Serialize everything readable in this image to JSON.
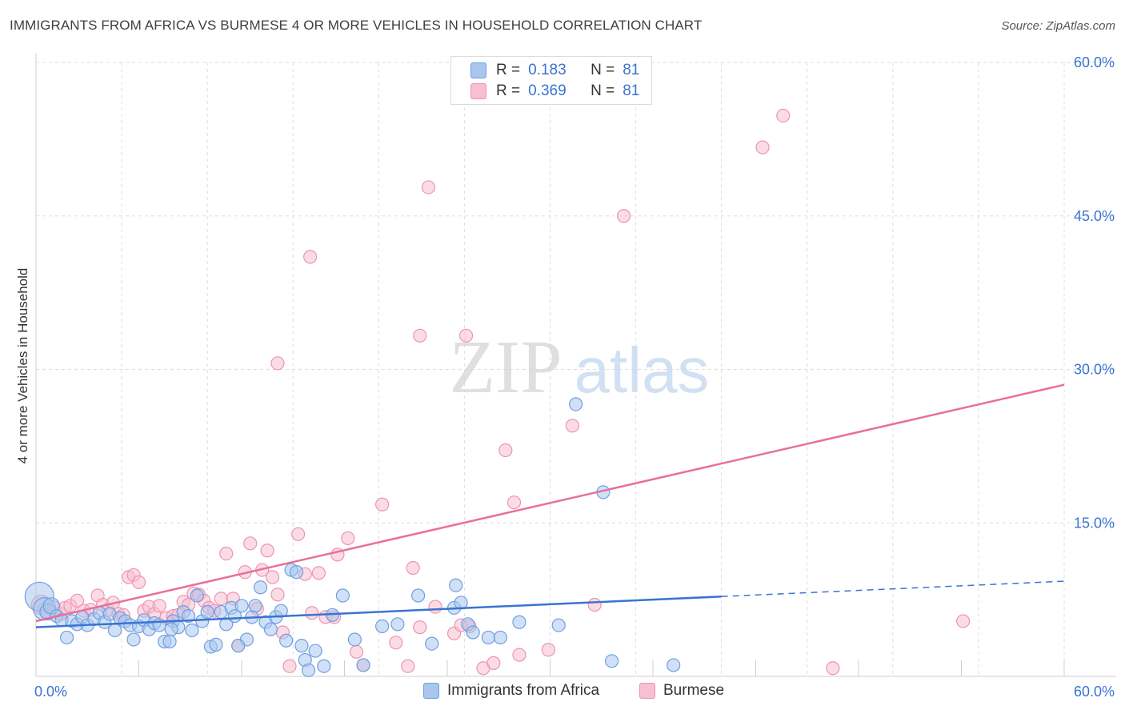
{
  "title": "IMMIGRANTS FROM AFRICA VS BURMESE 4 OR MORE VEHICLES IN HOUSEHOLD CORRELATION CHART",
  "source": "Source: ZipAtlas.com",
  "watermark": {
    "zip": "ZIP",
    "atlas": "atlas"
  },
  "colors": {
    "africa_fill": "#a9c6ee",
    "africa_stroke": "#6f9fe0",
    "africa_line": "#3a74d1",
    "burmese_fill": "#f7bfd0",
    "burmese_stroke": "#ee93b1",
    "burmese_line": "#e8709a",
    "axis_text": "#3a74d1",
    "grid": "#dddddd"
  },
  "legend_top": {
    "rows": [
      {
        "series": "africa",
        "r_label": "R =",
        "r_value": "0.183",
        "n_label": "N =",
        "n_value": "81"
      },
      {
        "series": "burmese",
        "r_label": "R =",
        "r_value": "0.369",
        "n_label": "N =",
        "n_value": "81"
      }
    ]
  },
  "legend_bottom": [
    {
      "series": "africa",
      "label": "Immigrants from Africa"
    },
    {
      "series": "burmese",
      "label": "Burmese"
    }
  ],
  "chart_data": {
    "type": "scatter",
    "title": "IMMIGRANTS FROM AFRICA VS BURMESE 4 OR MORE VEHICLES IN HOUSEHOLD CORRELATION CHART",
    "xlabel": "",
    "ylabel": "4 or more Vehicles in Household",
    "xlim": [
      0,
      60
    ],
    "ylim": [
      0,
      60
    ],
    "x_tick_labels": [
      {
        "value": 0,
        "label": "0.0%"
      },
      {
        "value": 60,
        "label": "60.0%"
      }
    ],
    "y_tick_labels": [
      {
        "value": 15,
        "label": "15.0%"
      },
      {
        "value": 30,
        "label": "30.0%"
      },
      {
        "value": 45,
        "label": "45.0%"
      },
      {
        "value": 60,
        "label": "60.0%"
      }
    ],
    "grid": true,
    "legend_position": "top-center",
    "series": [
      {
        "name": "Immigrants from Africa",
        "key": "africa",
        "trend": {
          "x0": 0,
          "y0": 4.8,
          "x1": 40,
          "y1": 7.8,
          "dashed_to_x": 60,
          "dashed_to_y": 9.3
        },
        "points": [
          [
            0.2,
            7.8,
            18
          ],
          [
            0.5,
            6.6,
            14
          ],
          [
            0.7,
            6.3,
            10
          ],
          [
            0.9,
            6.9,
            10
          ],
          [
            1.2,
            5.9,
            8
          ],
          [
            1.5,
            5.5,
            8
          ],
          [
            1.8,
            3.8,
            8
          ],
          [
            2.1,
            5.4,
            8
          ],
          [
            2.4,
            5.1,
            8
          ],
          [
            2.7,
            5.8,
            8
          ],
          [
            3.0,
            5.0,
            8
          ],
          [
            3.4,
            5.6,
            8
          ],
          [
            3.7,
            6.2,
            8
          ],
          [
            4.0,
            5.3,
            8
          ],
          [
            4.3,
            6.1,
            8
          ],
          [
            4.6,
            4.5,
            8
          ],
          [
            4.9,
            5.7,
            8
          ],
          [
            5.2,
            5.4,
            8
          ],
          [
            5.5,
            5.0,
            8
          ],
          [
            5.7,
            3.6,
            8
          ],
          [
            6.0,
            4.9,
            8
          ],
          [
            6.3,
            5.5,
            8
          ],
          [
            6.6,
            4.6,
            8
          ],
          [
            6.9,
            5.2,
            8
          ],
          [
            7.2,
            5.0,
            8
          ],
          [
            7.5,
            3.4,
            8
          ],
          [
            7.8,
            3.4,
            8
          ],
          [
            8.0,
            5.4,
            8
          ],
          [
            8.3,
            4.8,
            8
          ],
          [
            8.6,
            6.3,
            8
          ],
          [
            8.9,
            5.9,
            8
          ],
          [
            9.1,
            4.5,
            8
          ],
          [
            9.4,
            7.9,
            8
          ],
          [
            9.7,
            5.4,
            8
          ],
          [
            10.0,
            6.3,
            8
          ],
          [
            10.2,
            2.9,
            8
          ],
          [
            10.5,
            3.1,
            8
          ],
          [
            10.8,
            6.3,
            8
          ],
          [
            11.1,
            5.1,
            8
          ],
          [
            11.4,
            6.7,
            8
          ],
          [
            11.6,
            5.9,
            8
          ],
          [
            12.0,
            6.9,
            8
          ],
          [
            12.3,
            3.6,
            8
          ],
          [
            12.6,
            5.8,
            8
          ],
          [
            12.8,
            6.9,
            8
          ],
          [
            13.1,
            8.7,
            8
          ],
          [
            13.4,
            5.3,
            8
          ],
          [
            13.7,
            4.6,
            8
          ],
          [
            14.0,
            5.8,
            8
          ],
          [
            14.3,
            6.4,
            8
          ],
          [
            14.6,
            3.5,
            8
          ],
          [
            14.9,
            10.4,
            8
          ],
          [
            15.2,
            10.2,
            8
          ],
          [
            15.5,
            3.0,
            8
          ],
          [
            15.7,
            1.6,
            8
          ],
          [
            15.9,
            0.6,
            8
          ],
          [
            16.3,
            2.5,
            8
          ],
          [
            16.8,
            1.0,
            8
          ],
          [
            17.3,
            6.0,
            8
          ],
          [
            17.9,
            7.9,
            8
          ],
          [
            18.6,
            3.6,
            8
          ],
          [
            19.1,
            1.1,
            8
          ],
          [
            20.2,
            4.9,
            8
          ],
          [
            21.1,
            5.1,
            8
          ],
          [
            22.3,
            7.9,
            8
          ],
          [
            23.1,
            3.2,
            8
          ],
          [
            24.4,
            6.7,
            8
          ],
          [
            24.5,
            8.9,
            8
          ],
          [
            24.8,
            7.2,
            8
          ],
          [
            25.2,
            5.1,
            8
          ],
          [
            25.5,
            4.3,
            8
          ],
          [
            26.4,
            3.8,
            8
          ],
          [
            27.1,
            3.8,
            8
          ],
          [
            28.2,
            5.3,
            8
          ],
          [
            30.5,
            5.0,
            8
          ],
          [
            31.5,
            26.6,
            8
          ],
          [
            33.1,
            18.0,
            8
          ],
          [
            33.6,
            1.5,
            8
          ],
          [
            37.2,
            1.1,
            8
          ],
          [
            7.9,
            4.6,
            8
          ],
          [
            11.8,
            3.0,
            8
          ]
        ]
      },
      {
        "name": "Burmese",
        "key": "burmese",
        "trend": {
          "x0": 0,
          "y0": 5.4,
          "x1": 60,
          "y1": 28.5
        },
        "points": [
          [
            0.3,
            7.0,
            12
          ],
          [
            0.6,
            6.5,
            10
          ],
          [
            1.0,
            6.6,
            10
          ],
          [
            1.4,
            6.1,
            8
          ],
          [
            1.7,
            6.7,
            8
          ],
          [
            2.0,
            6.9,
            8
          ],
          [
            2.4,
            7.4,
            8
          ],
          [
            2.8,
            6.4,
            8
          ],
          [
            3.2,
            6.5,
            8
          ],
          [
            3.6,
            7.9,
            8
          ],
          [
            3.9,
            7.0,
            8
          ],
          [
            4.2,
            6.5,
            8
          ],
          [
            4.5,
            7.2,
            8
          ],
          [
            4.8,
            6.1,
            8
          ],
          [
            5.1,
            6.0,
            8
          ],
          [
            5.4,
            9.7,
            8
          ],
          [
            5.7,
            9.9,
            8
          ],
          [
            6.0,
            9.2,
            8
          ],
          [
            6.3,
            6.4,
            8
          ],
          [
            6.6,
            6.8,
            8
          ],
          [
            6.9,
            6.1,
            8
          ],
          [
            7.2,
            6.9,
            8
          ],
          [
            7.6,
            5.7,
            8
          ],
          [
            8.0,
            5.9,
            8
          ],
          [
            8.3,
            6.0,
            8
          ],
          [
            8.6,
            7.3,
            8
          ],
          [
            8.9,
            7.0,
            8
          ],
          [
            9.2,
            8.1,
            8
          ],
          [
            9.5,
            8.0,
            8
          ],
          [
            9.8,
            7.4,
            8
          ],
          [
            10.1,
            6.7,
            8
          ],
          [
            10.4,
            6.4,
            8
          ],
          [
            10.8,
            7.6,
            8
          ],
          [
            11.1,
            12.0,
            8
          ],
          [
            11.5,
            7.6,
            8
          ],
          [
            11.8,
            3.0,
            8
          ],
          [
            12.2,
            10.2,
            8
          ],
          [
            12.5,
            13.0,
            8
          ],
          [
            12.9,
            6.6,
            8
          ],
          [
            13.2,
            10.4,
            8
          ],
          [
            13.5,
            12.3,
            8
          ],
          [
            13.8,
            9.7,
            8
          ],
          [
            14.1,
            8.0,
            8
          ],
          [
            14.4,
            4.3,
            8
          ],
          [
            14.8,
            1.0,
            8
          ],
          [
            15.3,
            13.9,
            8
          ],
          [
            15.7,
            10.0,
            8
          ],
          [
            16.1,
            6.2,
            8
          ],
          [
            16.5,
            10.1,
            8
          ],
          [
            16.9,
            5.8,
            8
          ],
          [
            17.4,
            5.8,
            8
          ],
          [
            17.6,
            11.9,
            8
          ],
          [
            18.2,
            13.5,
            8
          ],
          [
            18.7,
            2.4,
            8
          ],
          [
            19.1,
            1.1,
            8
          ],
          [
            20.2,
            16.8,
            8
          ],
          [
            21.0,
            3.3,
            8
          ],
          [
            21.7,
            1.0,
            8
          ],
          [
            22.0,
            10.6,
            8
          ],
          [
            22.4,
            4.8,
            8
          ],
          [
            23.3,
            6.8,
            8
          ],
          [
            24.4,
            4.2,
            8
          ],
          [
            24.8,
            5.0,
            8
          ],
          [
            25.3,
            4.9,
            8
          ],
          [
            26.1,
            0.8,
            8
          ],
          [
            26.7,
            1.3,
            8
          ],
          [
            27.4,
            22.1,
            8
          ],
          [
            27.9,
            17.0,
            8
          ],
          [
            28.2,
            2.1,
            8
          ],
          [
            29.9,
            2.6,
            8
          ],
          [
            31.3,
            24.5,
            8
          ],
          [
            32.6,
            7.0,
            8
          ],
          [
            34.3,
            45.0,
            8
          ],
          [
            42.4,
            51.7,
            8
          ],
          [
            43.6,
            54.8,
            8
          ],
          [
            46.5,
            0.8,
            8
          ],
          [
            54.1,
            5.4,
            8
          ],
          [
            16.0,
            41.0,
            8
          ],
          [
            14.1,
            30.6,
            8
          ],
          [
            22.9,
            47.8,
            8
          ],
          [
            22.4,
            33.3,
            8
          ],
          [
            25.1,
            33.3,
            8
          ]
        ]
      }
    ]
  }
}
